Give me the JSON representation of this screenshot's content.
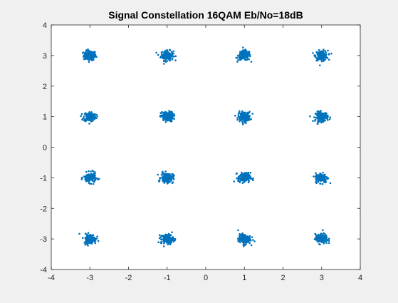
{
  "chart_data": {
    "type": "scatter",
    "title": "Signal Constellation 16QAM Eb/No=18dB",
    "xlabel": "",
    "ylabel": "",
    "xlim": [
      -4,
      4
    ],
    "ylim": [
      -4,
      4
    ],
    "xticks": [
      -4,
      -3,
      -2,
      -1,
      0,
      1,
      2,
      3,
      4
    ],
    "yticks": [
      -4,
      -3,
      -2,
      -1,
      0,
      1,
      2,
      3,
      4
    ],
    "grid": false,
    "legend": "none",
    "marker_color": "#0072BD",
    "cluster_centers": [
      [
        -3,
        3
      ],
      [
        -1,
        3
      ],
      [
        1,
        3
      ],
      [
        3,
        3
      ],
      [
        -3,
        1
      ],
      [
        -1,
        1
      ],
      [
        1,
        1
      ],
      [
        3,
        1
      ],
      [
        -3,
        -1
      ],
      [
        -1,
        -1
      ],
      [
        1,
        -1
      ],
      [
        3,
        -1
      ],
      [
        -3,
        -3
      ],
      [
        -1,
        -3
      ],
      [
        1,
        -3
      ],
      [
        3,
        -3
      ]
    ],
    "cluster_spread": 0.08,
    "points_per_cluster": 150
  }
}
